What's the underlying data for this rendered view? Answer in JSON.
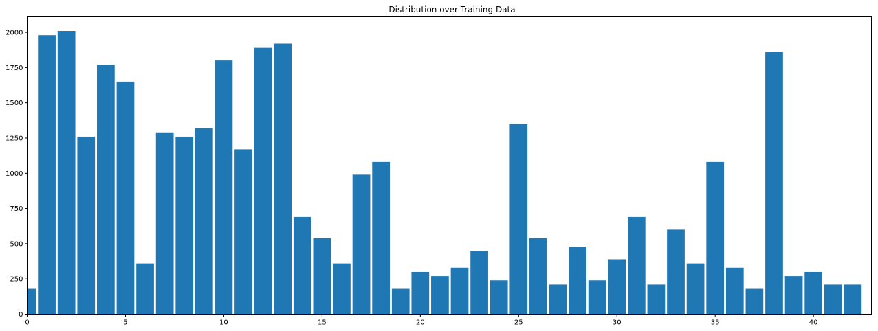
{
  "chart_data": {
    "type": "bar",
    "title": "Distribution over Training Data",
    "xlabel": "",
    "ylabel": "",
    "x": [
      0,
      1,
      2,
      3,
      4,
      5,
      6,
      7,
      8,
      9,
      10,
      11,
      12,
      13,
      14,
      15,
      16,
      17,
      18,
      19,
      20,
      21,
      22,
      23,
      24,
      25,
      26,
      27,
      28,
      29,
      30,
      31,
      32,
      33,
      34,
      35,
      36,
      37,
      38,
      39,
      40,
      41,
      42
    ],
    "values": [
      180,
      1980,
      2010,
      1260,
      1770,
      1650,
      360,
      1290,
      1260,
      1320,
      1800,
      1170,
      1890,
      1920,
      690,
      540,
      360,
      990,
      1080,
      180,
      300,
      270,
      330,
      450,
      240,
      1350,
      540,
      210,
      480,
      240,
      390,
      690,
      210,
      600,
      360,
      1080,
      330,
      180,
      1860,
      270,
      300,
      210,
      210
    ],
    "xlim": [
      0,
      42.95
    ],
    "ylim": [
      0,
      2110
    ],
    "xticks": [
      0,
      5,
      10,
      15,
      20,
      25,
      30,
      35,
      40
    ],
    "xtick_labels": [
      "0",
      "5",
      "10",
      "15",
      "20",
      "25",
      "30",
      "35",
      "40"
    ],
    "yticks": [
      0,
      250,
      500,
      750,
      1000,
      1250,
      1500,
      1750,
      2000
    ],
    "ytick_labels": [
      "0",
      "250",
      "500",
      "750",
      "1000",
      "1250",
      "1500",
      "1750",
      "2000"
    ],
    "bar_color": "#1f77b4",
    "grid": false,
    "legend": "none"
  }
}
